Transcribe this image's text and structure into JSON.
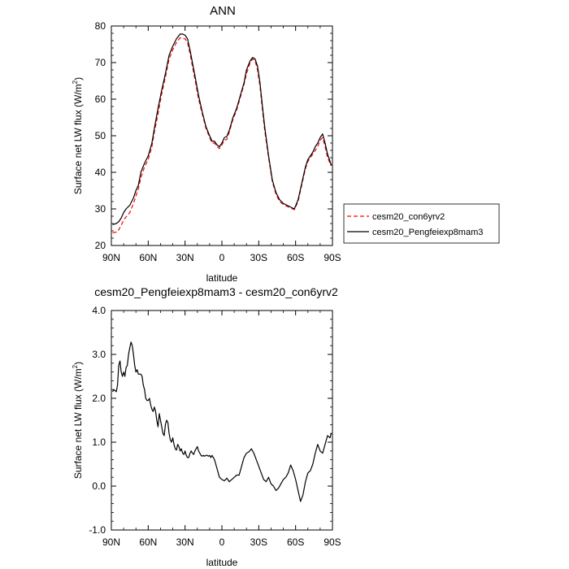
{
  "chart_data": [
    {
      "type": "line",
      "title": "ANN",
      "xlabel": "latitude",
      "ylabel": "Surface net LW flux (W/m²)",
      "ylabel_main": "Surface net LW flux (W/m",
      "ylabel_sup": "2",
      "ylabel_tail": ")",
      "xlim": [
        90,
        -90
      ],
      "ylim": [
        20,
        80
      ],
      "xticks": [
        90,
        60,
        30,
        0,
        -30,
        -60,
        -90
      ],
      "xtick_labels": [
        "90N",
        "60N",
        "30N",
        "0",
        "30S",
        "60S",
        "90S"
      ],
      "yticks": [
        20,
        30,
        40,
        50,
        60,
        70,
        80
      ],
      "ytick_labels": [
        "20",
        "30",
        "40",
        "50",
        "60",
        "70",
        "80"
      ],
      "legend": "right",
      "series": [
        {
          "name": "cesm20_con6yrv2",
          "color": "#ff0000",
          "dash": "dashed",
          "x": [
            89,
            85,
            82,
            80,
            78,
            75,
            72,
            70,
            68,
            66,
            63,
            60,
            57,
            55,
            52,
            49,
            46,
            43,
            40,
            37,
            34,
            32,
            30,
            28,
            26,
            24,
            22,
            19,
            16,
            13,
            10,
            8,
            6,
            4,
            2,
            0,
            -2,
            -4,
            -6,
            -9,
            -12,
            -15,
            -18,
            -20,
            -23,
            -25,
            -27,
            -29,
            -31,
            -33,
            -35,
            -38,
            -41,
            -44,
            -47,
            -50,
            -53,
            -56,
            -59,
            -62,
            -64,
            -66,
            -68,
            -70,
            -72,
            -74,
            -76,
            -78,
            -80,
            -82,
            -84,
            -86,
            -88,
            -89
          ],
          "y": [
            23.5,
            23.7,
            25.5,
            27,
            27.8,
            29,
            31.5,
            33.5,
            35.5,
            38.5,
            41.5,
            43.5,
            47,
            51,
            56,
            61.5,
            66,
            71,
            73.5,
            75.5,
            76.8,
            76.6,
            76.5,
            75.5,
            72.5,
            69,
            65.5,
            60,
            56,
            52,
            49.5,
            48,
            48,
            47,
            46.5,
            47.5,
            48.8,
            49,
            51,
            54.5,
            57,
            60.5,
            64,
            67,
            70,
            71,
            70.5,
            68,
            63.5,
            57,
            51,
            44,
            37.5,
            34,
            32,
            31.2,
            30.7,
            30.2,
            29.8,
            32,
            35,
            38,
            41,
            43,
            44,
            45,
            46,
            47,
            48.8,
            49.5,
            47,
            44,
            42.5,
            41.8
          ]
        },
        {
          "name": "cesm20_Pengfeiexp8mam3",
          "color": "#000000",
          "dash": "solid",
          "x": [
            89,
            86,
            84,
            82,
            80,
            78,
            75,
            72,
            70,
            68,
            66,
            63,
            60,
            57,
            55,
            52,
            49,
            46,
            43,
            40,
            37,
            34,
            32,
            30,
            28,
            26,
            24,
            22,
            19,
            16,
            13,
            10,
            8,
            6,
            4,
            2,
            0,
            -2,
            -4,
            -6,
            -9,
            -12,
            -15,
            -18,
            -20,
            -23,
            -25,
            -27,
            -29,
            -31,
            -33,
            -35,
            -38,
            -41,
            -44,
            -47,
            -50,
            -53,
            -56,
            -59,
            -62,
            -64,
            -66,
            -68,
            -70,
            -72,
            -74,
            -76,
            -78,
            -80,
            -82,
            -84,
            -86,
            -88,
            -89
          ],
          "y": [
            25.7,
            26,
            26.5,
            27.5,
            29,
            30,
            31,
            33,
            35,
            36.5,
            40,
            42.5,
            44.5,
            48,
            52,
            57.5,
            62.5,
            67,
            72,
            74.5,
            76.5,
            77.8,
            77.8,
            77.5,
            76.5,
            73.5,
            70,
            66.5,
            61,
            56.5,
            52.5,
            50,
            48.5,
            48.5,
            47.5,
            47,
            48,
            49.5,
            49.8,
            51.5,
            55,
            57.5,
            61,
            64.5,
            68,
            70.5,
            71.4,
            71,
            69,
            64.5,
            58,
            52,
            44.5,
            38,
            34.5,
            32.5,
            31.5,
            31,
            30.5,
            30,
            32.5,
            35.5,
            38.5,
            41.5,
            43.5,
            44.5,
            45.5,
            47,
            48,
            49.5,
            50.5,
            48,
            45,
            43,
            42
          ]
        }
      ]
    },
    {
      "type": "line",
      "title": "cesm20_Pengfeiexp8mam3 - cesm20_con6yrv2",
      "xlabel": "latitude",
      "ylabel": "Surface net LW flux (W/m²)",
      "ylabel_main": "Surface net LW flux (W/m",
      "ylabel_sup": "2",
      "ylabel_tail": ")",
      "xlim": [
        90,
        -90
      ],
      "ylim": [
        -1,
        4
      ],
      "xticks": [
        90,
        60,
        30,
        0,
        -30,
        -60,
        -90
      ],
      "xtick_labels": [
        "90N",
        "60N",
        "30N",
        "0",
        "30S",
        "60S",
        "90S"
      ],
      "yticks": [
        -1,
        0,
        1,
        2,
        3,
        4
      ],
      "ytick_labels": [
        "-1.0",
        "0.0",
        "1.0",
        "2.0",
        "3.0",
        "4.0"
      ],
      "series": [
        {
          "name": "",
          "color": "#000000",
          "dash": "solid",
          "x": [
            89,
            88,
            86,
            85,
            84,
            83,
            82,
            81,
            80,
            79,
            78,
            77,
            76,
            75,
            74,
            73,
            72,
            71,
            70,
            69,
            68,
            67,
            66,
            65,
            64,
            63,
            62,
            61,
            60,
            59,
            58,
            57,
            56,
            55,
            54,
            53,
            52,
            51,
            50,
            49,
            48,
            47,
            46,
            45,
            44,
            43,
            42,
            41,
            40,
            39,
            38,
            37,
            36,
            35,
            34,
            33,
            32,
            31,
            30,
            29,
            28,
            27,
            26,
            25,
            24,
            23,
            22,
            21,
            20,
            19,
            18,
            17,
            16,
            15,
            14,
            13,
            12,
            11,
            10,
            9,
            8,
            6,
            4,
            2,
            0,
            -2,
            -4,
            -6,
            -8,
            -10,
            -12,
            -14,
            -16,
            -18,
            -20,
            -22,
            -24,
            -26,
            -28,
            -30,
            -32,
            -34,
            -36,
            -38,
            -40,
            -42,
            -44,
            -46,
            -48,
            -50,
            -52,
            -54,
            -56,
            -58,
            -60,
            -62,
            -64,
            -66,
            -68,
            -70,
            -72,
            -74,
            -76,
            -78,
            -80,
            -82,
            -84,
            -86,
            -88,
            -89
          ],
          "y": [
            2.15,
            2.2,
            2.15,
            2.3,
            2.75,
            2.85,
            2.6,
            2.5,
            2.6,
            2.5,
            2.7,
            2.75,
            3.0,
            3.15,
            3.28,
            3.2,
            3.0,
            2.75,
            2.6,
            2.65,
            2.55,
            2.55,
            2.55,
            2.5,
            2.3,
            2.2,
            2.0,
            1.95,
            1.95,
            2.0,
            1.85,
            1.75,
            1.7,
            1.8,
            1.7,
            1.5,
            1.35,
            1.65,
            1.5,
            1.35,
            1.2,
            1.15,
            1.4,
            1.5,
            1.45,
            1.2,
            1.05,
            1.0,
            1.1,
            0.95,
            0.85,
            0.82,
            0.95,
            0.9,
            0.8,
            0.85,
            0.75,
            0.72,
            0.8,
            0.7,
            0.65,
            0.65,
            0.75,
            0.8,
            0.75,
            0.72,
            0.8,
            0.85,
            0.9,
            0.8,
            0.75,
            0.7,
            0.68,
            0.7,
            0.68,
            0.7,
            0.7,
            0.68,
            0.7,
            0.65,
            0.7,
            0.6,
            0.4,
            0.2,
            0.15,
            0.12,
            0.18,
            0.1,
            0.15,
            0.2,
            0.25,
            0.25,
            0.45,
            0.65,
            0.75,
            0.78,
            0.85,
            0.75,
            0.6,
            0.45,
            0.3,
            0.15,
            0.1,
            0.2,
            0.05,
            0.0,
            -0.1,
            -0.05,
            0.05,
            0.15,
            0.2,
            0.3,
            0.48,
            0.35,
            0.15,
            -0.1,
            -0.35,
            -0.2,
            0.1,
            0.3,
            0.35,
            0.5,
            0.75,
            0.95,
            0.8,
            0.75,
            0.95,
            1.15,
            1.1,
            1.2
          ]
        }
      ]
    }
  ]
}
